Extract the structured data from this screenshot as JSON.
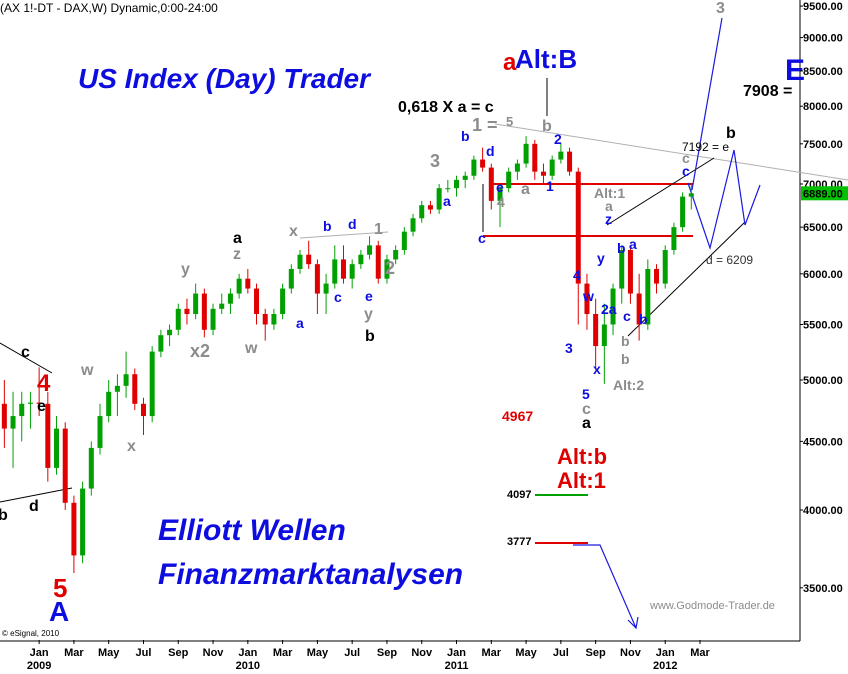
{
  "chart_data": {
    "type": "candlestick",
    "header": "(AX 1!-DT - DAX,W) Dynamic,0:00-24:00",
    "log_y": true,
    "grid": false,
    "up_color": "#00a000",
    "down_color": "#e00000",
    "ylim": [
      3200,
      9600
    ],
    "yticks": [
      {
        "value": 3500,
        "label": "3500.00"
      },
      {
        "value": 4000,
        "label": "4000.00"
      },
      {
        "value": 4500,
        "label": "4500.00"
      },
      {
        "value": 5000,
        "label": "5000.00"
      },
      {
        "value": 5500,
        "label": "5500.00"
      },
      {
        "value": 6000,
        "label": "6000.00"
      },
      {
        "value": 6500,
        "label": "6500.00"
      },
      {
        "value": 7000,
        "label": "7000.00"
      },
      {
        "value": 7500,
        "label": "7500.00"
      },
      {
        "value": 8000,
        "label": "8000.00"
      },
      {
        "value": 8500,
        "label": "8500.00"
      },
      {
        "value": 9000,
        "label": "9000.00"
      },
      {
        "value": 9500,
        "label": "9500.00"
      }
    ],
    "last_price": {
      "value": 6889,
      "label": "6889.00",
      "color": "#00c000"
    },
    "categories": [
      null,
      null,
      null,
      null,
      "Jan",
      null,
      null,
      null,
      "Mar",
      null,
      null,
      null,
      "May",
      null,
      null,
      null,
      "Jul",
      null,
      null,
      null,
      "Sep",
      null,
      null,
      null,
      "Nov",
      null,
      null,
      null,
      "Jan",
      null,
      null,
      null,
      "Mar",
      null,
      null,
      null,
      "May",
      null,
      null,
      null,
      "Jul",
      null,
      null,
      null,
      "Sep",
      null,
      null,
      null,
      "Nov",
      null,
      null,
      null,
      "Jan",
      null,
      null,
      null,
      "Mar",
      null,
      null,
      null,
      "May",
      null,
      null,
      null,
      "Jul",
      null,
      null,
      null,
      "Sep",
      null,
      null,
      null,
      "Nov",
      null,
      null,
      null,
      "Jan",
      null,
      null,
      null,
      "Mar",
      null,
      null,
      null,
      null,
      null,
      null,
      null,
      null,
      null,
      null,
      null
    ],
    "years": [
      null,
      null,
      null,
      null,
      "2009",
      null,
      null,
      null,
      null,
      null,
      null,
      null,
      null,
      null,
      null,
      null,
      null,
      null,
      null,
      null,
      null,
      null,
      null,
      null,
      null,
      null,
      null,
      null,
      "2010",
      null,
      null,
      null,
      null,
      null,
      null,
      null,
      null,
      null,
      null,
      null,
      null,
      null,
      null,
      null,
      null,
      null,
      null,
      null,
      null,
      null,
      null,
      null,
      "2011",
      null,
      null,
      null,
      null,
      null,
      null,
      null,
      null,
      null,
      null,
      null,
      null,
      null,
      null,
      null,
      null,
      null,
      null,
      null,
      null,
      null,
      null,
      null,
      "2012",
      null,
      null,
      null,
      null,
      null,
      null,
      null,
      null,
      null,
      null,
      null,
      null,
      null,
      null,
      null
    ],
    "ohlc": [
      [
        4800,
        5000,
        4450,
        4600
      ],
      [
        4600,
        4900,
        4300,
        4700
      ],
      [
        4700,
        4900,
        4500,
        4800
      ],
      [
        4800,
        4900,
        4600,
        4810
      ],
      [
        4810,
        5110,
        4700,
        4800
      ],
      [
        4800,
        4900,
        4200,
        4300
      ],
      [
        4300,
        4700,
        4250,
        4600
      ],
      [
        4600,
        4650,
        4000,
        4050
      ],
      [
        4050,
        4100,
        3590,
        3700
      ],
      [
        3700,
        4200,
        3650,
        4150
      ],
      [
        4150,
        4500,
        4100,
        4450
      ],
      [
        4450,
        4800,
        4400,
        4700
      ],
      [
        4700,
        5000,
        4650,
        4900
      ],
      [
        4900,
        5050,
        4700,
        4950
      ],
      [
        4950,
        5250,
        4850,
        5050
      ],
      [
        5050,
        5100,
        4750,
        4800
      ],
      [
        4800,
        4850,
        4550,
        4700
      ],
      [
        4700,
        5300,
        4650,
        5250
      ],
      [
        5250,
        5450,
        5200,
        5400
      ],
      [
        5400,
        5500,
        5300,
        5450
      ],
      [
        5450,
        5700,
        5400,
        5650
      ],
      [
        5650,
        5750,
        5500,
        5600
      ],
      [
        5600,
        5900,
        5550,
        5800
      ],
      [
        5800,
        5850,
        5380,
        5450
      ],
      [
        5450,
        5700,
        5400,
        5650
      ],
      [
        5650,
        5800,
        5600,
        5700
      ],
      [
        5700,
        5850,
        5600,
        5800
      ],
      [
        5800,
        6000,
        5750,
        5950
      ],
      [
        5950,
        6050,
        5800,
        5850
      ],
      [
        5850,
        5900,
        5500,
        5600
      ],
      [
        5600,
        5650,
        5350,
        5500
      ],
      [
        5500,
        5650,
        5450,
        5600
      ],
      [
        5600,
        5900,
        5550,
        5850
      ],
      [
        5850,
        6100,
        5800,
        6050
      ],
      [
        6050,
        6250,
        6000,
        6200
      ],
      [
        6200,
        6350,
        6050,
        6100
      ],
      [
        6100,
        6150,
        5600,
        5800
      ],
      [
        5800,
        6000,
        5600,
        5900
      ],
      [
        5900,
        6300,
        5850,
        6150
      ],
      [
        6150,
        6300,
        5900,
        5950
      ],
      [
        5950,
        6150,
        5850,
        6100
      ],
      [
        6100,
        6250,
        6050,
        6200
      ],
      [
        6200,
        6400,
        6150,
        6300
      ],
      [
        6300,
        6350,
        5900,
        5950
      ],
      [
        5950,
        6200,
        5900,
        6150
      ],
      [
        6150,
        6300,
        6100,
        6250
      ],
      [
        6250,
        6500,
        6200,
        6450
      ],
      [
        6450,
        6650,
        6400,
        6600
      ],
      [
        6600,
        6800,
        6550,
        6750
      ],
      [
        6750,
        6800,
        6650,
        6700
      ],
      [
        6700,
        7000,
        6650,
        6950
      ],
      [
        6950,
        7050,
        6900,
        6950
      ],
      [
        6950,
        7100,
        6850,
        7050
      ],
      [
        7050,
        7150,
        6950,
        7100
      ],
      [
        7100,
        7350,
        7050,
        7300
      ],
      [
        7300,
        7450,
        7150,
        7200
      ],
      [
        7200,
        7250,
        6700,
        6800
      ],
      [
        6800,
        7000,
        6500,
        6950
      ],
      [
        6950,
        7200,
        6900,
        7150
      ],
      [
        7150,
        7300,
        7050,
        7250
      ],
      [
        7250,
        7600,
        7200,
        7500
      ],
      [
        7500,
        7550,
        7050,
        7150
      ],
      [
        7150,
        7250,
        7000,
        7100
      ],
      [
        7100,
        7350,
        7050,
        7300
      ],
      [
        7300,
        7500,
        7250,
        7400
      ],
      [
        7400,
        7450,
        7100,
        7150
      ],
      [
        7150,
        7200,
        5500,
        5900
      ],
      [
        5900,
        6000,
        5450,
        5600
      ],
      [
        5600,
        5750,
        5100,
        5300
      ],
      [
        5300,
        5700,
        4967,
        5500
      ],
      [
        5500,
        5900,
        5400,
        5850
      ],
      [
        5850,
        6300,
        5700,
        6250
      ],
      [
        6250,
        6300,
        5700,
        5800
      ],
      [
        5800,
        6000,
        5350,
        5500
      ],
      [
        5500,
        6150,
        5450,
        6050
      ],
      [
        6050,
        6100,
        5800,
        5900
      ],
      [
        5900,
        6300,
        5850,
        6250
      ],
      [
        6250,
        6550,
        6200,
        6500
      ],
      [
        6500,
        6900,
        6450,
        6850
      ],
      [
        6850,
        6990,
        6700,
        6889
      ],
      null,
      null,
      null,
      null,
      null,
      null,
      null,
      null,
      null,
      null,
      null,
      null
    ],
    "annotations": [
      {
        "text": "US Index (Day) Trader",
        "color": "#0d0de0"
      },
      {
        "text": "Elliott Wellen",
        "color": "#0d0de0"
      },
      {
        "text": "Finanzmarktanalysen",
        "color": "#0d0de0"
      },
      {
        "text": "www.Godmode-Trader.de",
        "color": "#8c8c8c"
      },
      {
        "text": "© eSignal, 2010",
        "color": "#000000"
      },
      {
        "text": "Alt:B",
        "color": "#0d0de0"
      },
      {
        "text": "a",
        "color": "#e00000"
      },
      {
        "text": "0,618 X a = c",
        "color": "#000000"
      },
      {
        "text": "1 =",
        "color": "#8c8c8c"
      },
      {
        "text": "5",
        "color": "#8c8c8c"
      },
      {
        "text": "b",
        "color": "#8c8c8c"
      },
      {
        "text": "2",
        "color": "#0d0de0"
      },
      {
        "text": "1",
        "color": "#0d0de0"
      },
      {
        "text": "a",
        "color": "#8c8c8c"
      },
      {
        "text": "b",
        "color": "#0d0de0"
      },
      {
        "text": "d",
        "color": "#0d0de0"
      },
      {
        "text": "e",
        "color": "#0d0de0"
      },
      {
        "text": "4",
        "color": "#8c8c8c"
      },
      {
        "text": "a",
        "color": "#0d0de0"
      },
      {
        "text": "3",
        "color": "#8c8c8c"
      },
      {
        "text": "c",
        "color": "#0d0de0"
      },
      {
        "text": "7908 =",
        "color": "#000000"
      },
      {
        "text": "E",
        "color": "#0d0de0"
      },
      {
        "text": "3",
        "color": "#8c8c8c"
      },
      {
        "text": "b",
        "color": "#000000"
      },
      {
        "text": "7192 = e",
        "color": "#000000"
      },
      {
        "text": "c",
        "color": "#8c8c8c"
      },
      {
        "text": "c",
        "color": "#0d0de0"
      },
      {
        "text": "Alt:1",
        "color": "#8c8c8c"
      },
      {
        "text": "a",
        "color": "#8c8c8c"
      },
      {
        "text": "z",
        "color": "#0d0de0"
      },
      {
        "text": "y",
        "color": "#0d0de0"
      },
      {
        "text": "b",
        "color": "#0d0de0"
      },
      {
        "text": "a",
        "color": "#0d0de0"
      },
      {
        "text": "w",
        "color": "#0d0de0"
      },
      {
        "text": "2a",
        "color": "#0d0de0"
      },
      {
        "text": "c",
        "color": "#0d0de0"
      },
      {
        "text": "b",
        "color": "#0d0de0"
      },
      {
        "text": "b",
        "color": "#8c8c8c"
      },
      {
        "text": "b",
        "color": "#8c8c8c"
      },
      {
        "text": "Alt:2",
        "color": "#8c8c8c"
      },
      {
        "text": "x",
        "color": "#0d0de0"
      },
      {
        "text": "3",
        "color": "#0d0de0"
      },
      {
        "text": "4",
        "color": "#0d0de0"
      },
      {
        "text": "5",
        "color": "#0d0de0"
      },
      {
        "text": "c",
        "color": "#8c8c8c"
      },
      {
        "text": "a",
        "color": "#000000"
      },
      {
        "text": "d = 6209",
        "color": "#333333"
      },
      {
        "text": "4967",
        "color": "#e00000"
      },
      {
        "text": "Alt:b",
        "color": "#e00000"
      },
      {
        "text": "Alt:1",
        "color": "#e00000"
      },
      {
        "text": "4097",
        "color": "#000000"
      },
      {
        "text": "3777",
        "color": "#000000"
      },
      {
        "text": "c",
        "color": "#000000"
      },
      {
        "text": "4",
        "color": "#e00000"
      },
      {
        "text": "e",
        "color": "#000000"
      },
      {
        "text": "d",
        "color": "#000000"
      },
      {
        "text": "b",
        "color": "#000000"
      },
      {
        "text": "5",
        "color": "#e00000"
      },
      {
        "text": "A",
        "color": "#0d0de0"
      },
      {
        "text": "w",
        "color": "#8c8c8c"
      },
      {
        "text": "x",
        "color": "#8c8c8c"
      },
      {
        "text": "y",
        "color": "#8c8c8c"
      },
      {
        "text": "x2",
        "color": "#8c8c8c"
      },
      {
        "text": "w",
        "color": "#8c8c8c"
      },
      {
        "text": "a",
        "color": "#000000"
      },
      {
        "text": "z",
        "color": "#8c8c8c"
      },
      {
        "text": "x",
        "color": "#8c8c8c"
      },
      {
        "text": "a",
        "color": "#0d0de0"
      },
      {
        "text": "b",
        "color": "#0d0de0"
      },
      {
        "text": "c",
        "color": "#0d0de0"
      },
      {
        "text": "d",
        "color": "#0d0de0"
      },
      {
        "text": "1",
        "color": "#8c8c8c"
      },
      {
        "text": "2",
        "color": "#8c8c8c"
      },
      {
        "text": "e",
        "color": "#0d0de0"
      },
      {
        "text": "y",
        "color": "#8c8c8c"
      },
      {
        "text": "b",
        "color": "#000000"
      }
    ]
  }
}
